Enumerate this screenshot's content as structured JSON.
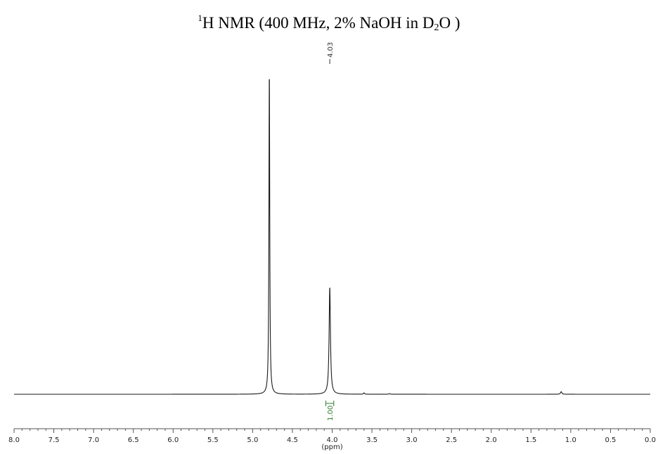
{
  "title": {
    "nucleus_sup": "1",
    "prefix": "H NMR (400 MHz, 2% NaOH in D",
    "sub": "2",
    "suffix": "O )"
  },
  "chart_data": {
    "type": "line",
    "title": "1H NMR (400 MHz, 2% NaOH in D2O )",
    "xlabel": "(ppm)",
    "ylabel": "",
    "xlim": [
      8.0,
      0.0
    ],
    "x_reversed": true,
    "x_ticks": [
      8.0,
      7.5,
      7.0,
      6.5,
      6.0,
      5.5,
      5.0,
      4.5,
      4.0,
      3.5,
      3.0,
      2.5,
      2.0,
      1.5,
      1.0,
      0.5,
      0.0
    ],
    "x_tick_labels": [
      "8.0",
      "7.5",
      "7.0",
      "6.5",
      "6.0",
      "5.5",
      "5.0",
      "4.5",
      "4.0",
      "3.5",
      "3.0",
      "2.5",
      "2.0",
      "1.5",
      "1.0",
      "0.5",
      "0.0"
    ],
    "grid": false,
    "baseline": 0,
    "peaks": [
      {
        "ppm": 4.79,
        "intensity": 1.0,
        "width": 0.006
      },
      {
        "ppm": 4.03,
        "intensity": 0.33,
        "width": 0.01
      },
      {
        "ppm": 3.6,
        "intensity": 0.004,
        "width": 0.008
      },
      {
        "ppm": 3.28,
        "intensity": 0.002,
        "width": 0.008
      },
      {
        "ppm": 1.12,
        "intensity": 0.008,
        "width": 0.01
      }
    ],
    "peak_labels": [
      {
        "ppm": 4.03,
        "text": "4.03"
      }
    ],
    "integrations": [
      {
        "from": 4.08,
        "to": 3.98,
        "value": "1.00"
      }
    ]
  }
}
